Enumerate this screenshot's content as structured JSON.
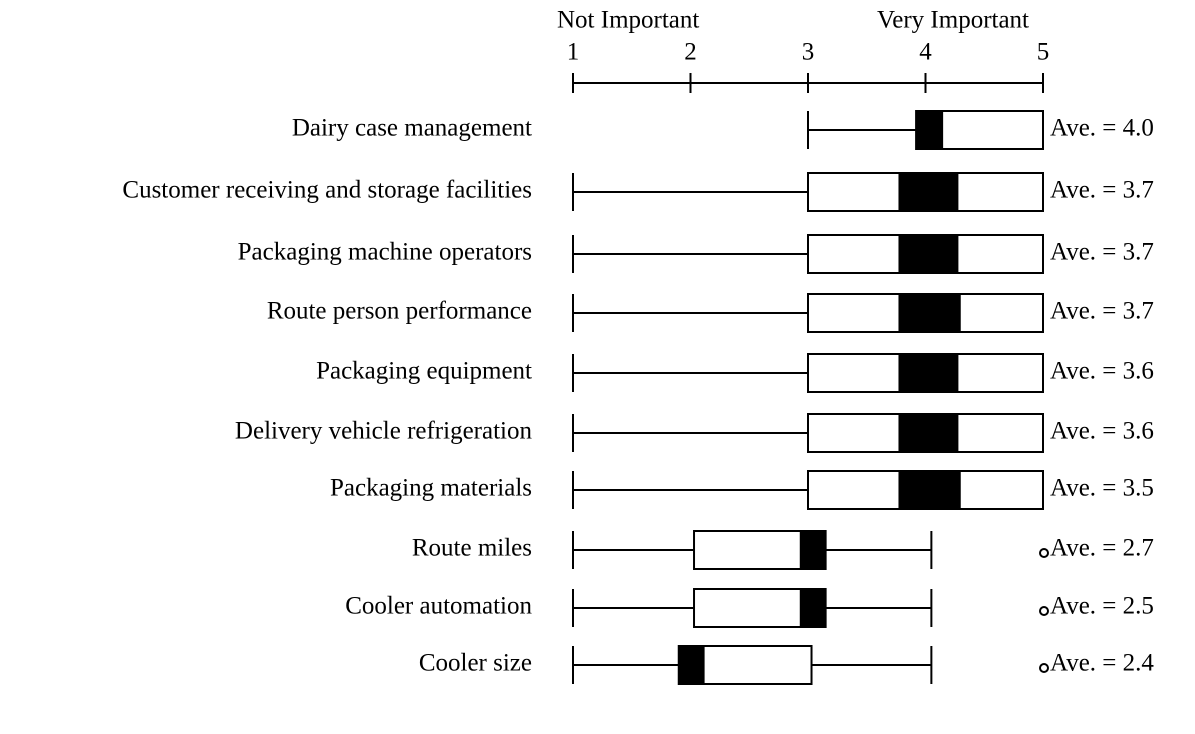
{
  "chart_data": {
    "type": "box",
    "annotations": [
      "Not Important",
      "Very Important"
    ],
    "xlim": [
      1,
      5
    ],
    "xticks": [
      1,
      2,
      3,
      4,
      5
    ],
    "categories": [
      "Dairy case management",
      "Customer receiving and storage facilities",
      "Packaging machine operators",
      "Route person performance",
      "Packaging equipment",
      "Delivery vehicle refrigeration",
      "Packaging materials",
      "Route miles",
      "Cooler automation",
      "Cooler size"
    ],
    "whisker_low": [
      3,
      1,
      1,
      1,
      1,
      1,
      1,
      1,
      1,
      1
    ],
    "q1": [
      3.92,
      3,
      3,
      3,
      3,
      3,
      3,
      2.03,
      2.03,
      1.9
    ],
    "band_low": [
      3.92,
      3.77,
      3.77,
      3.77,
      3.77,
      3.77,
      3.77,
      2.93,
      2.93,
      1.9
    ],
    "band_high": [
      4.15,
      4.28,
      4.28,
      4.3,
      4.28,
      4.28,
      4.3,
      3.15,
      3.15,
      2.12
    ],
    "q3": [
      5,
      5,
      5,
      5,
      5,
      5,
      5,
      3.15,
      3.15,
      3.03
    ],
    "whisker_high": [
      5,
      5,
      5,
      5,
      5,
      5,
      5,
      4.05,
      4.05,
      4.05
    ],
    "outliers": [
      null,
      null,
      null,
      null,
      null,
      null,
      null,
      5,
      5,
      5
    ],
    "averages": [
      4.0,
      3.7,
      3.7,
      3.7,
      3.6,
      3.6,
      3.5,
      2.7,
      2.5,
      2.4
    ],
    "average_labels": [
      "Ave. = 4.0",
      "Ave. = 3.7",
      "Ave. = 3.7",
      "Ave. = 3.7",
      "Ave. = 3.6",
      "Ave. = 3.6",
      "Ave. = 3.5",
      "Ave. = 2.7",
      "Ave. = 2.5",
      "Ave. = 2.4"
    ]
  }
}
